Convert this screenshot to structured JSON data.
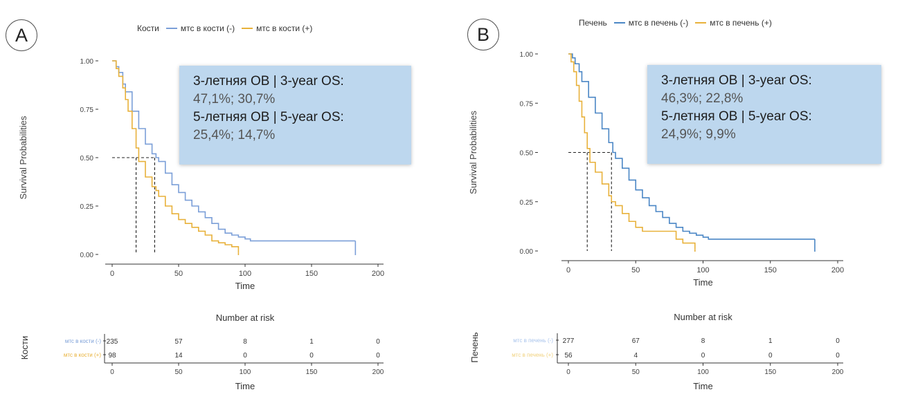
{
  "chart_data": [
    {
      "type": "line",
      "panel_label": "A",
      "legend_title": "Кости",
      "series": [
        {
          "name": "мтс в кости (-)",
          "color": "#7b9fd8",
          "x": [
            0,
            3,
            5,
            8,
            10,
            15,
            20,
            25,
            30,
            33,
            35,
            40,
            45,
            50,
            55,
            60,
            65,
            70,
            75,
            80,
            85,
            90,
            95,
            100,
            104,
            110,
            183
          ],
          "y": [
            1.0,
            0.97,
            0.94,
            0.88,
            0.84,
            0.74,
            0.65,
            0.57,
            0.52,
            0.5,
            0.48,
            0.42,
            0.36,
            0.32,
            0.28,
            0.25,
            0.22,
            0.19,
            0.16,
            0.13,
            0.11,
            0.1,
            0.09,
            0.08,
            0.07,
            0.07,
            0.07
          ]
        },
        {
          "name": "мтс в кости (+)",
          "color": "#e8b13a",
          "x": [
            0,
            3,
            5,
            8,
            10,
            12,
            15,
            18,
            20,
            25,
            30,
            33,
            35,
            40,
            45,
            50,
            55,
            60,
            65,
            70,
            75,
            80,
            85,
            90,
            95
          ],
          "y": [
            1.0,
            0.96,
            0.92,
            0.86,
            0.8,
            0.74,
            0.65,
            0.55,
            0.48,
            0.4,
            0.35,
            0.33,
            0.3,
            0.25,
            0.21,
            0.18,
            0.16,
            0.14,
            0.12,
            0.1,
            0.07,
            0.06,
            0.05,
            0.04,
            0.01
          ]
        }
      ],
      "median_lines": [
        18,
        32
      ],
      "xlabel": "Time",
      "ylabel": "Survival Probabilities",
      "xlim": [
        0,
        200
      ],
      "ylim": [
        0,
        1
      ],
      "xticks": [
        "0",
        "50",
        "100",
        "150",
        "200"
      ],
      "yticks": [
        "0.00",
        "0.25",
        "0.50",
        "0.75",
        "1.00"
      ],
      "annotation": {
        "line1": "3-летняя ОВ | 3-year OS:",
        "line2": "47,1%;  30,7%",
        "line3": "5-летняя ОВ | 5-year OS:",
        "line4": "25,4%;  14,7%"
      },
      "risk_table": {
        "title": "Number at risk",
        "group_label": "Кости",
        "xlabel": "Time",
        "rows": [
          {
            "label": "мтс в кости (-)",
            "color": "#7b9fd8",
            "values": [
              "235",
              "57",
              "8",
              "1",
              "0"
            ]
          },
          {
            "label": "мтс в кости (+)",
            "color": "#e8b13a",
            "values": [
              "98",
              "14",
              "0",
              "0",
              "0"
            ]
          }
        ]
      }
    },
    {
      "type": "line",
      "panel_label": "B",
      "legend_title": "Печень",
      "series": [
        {
          "name": "мтс в печень (-)",
          "color": "#4a86c5",
          "x": [
            0,
            3,
            5,
            8,
            10,
            15,
            20,
            25,
            30,
            33,
            35,
            40,
            45,
            50,
            55,
            60,
            65,
            70,
            75,
            80,
            85,
            90,
            95,
            100,
            104,
            110,
            183
          ],
          "y": [
            1.0,
            0.98,
            0.95,
            0.91,
            0.86,
            0.78,
            0.7,
            0.62,
            0.55,
            0.5,
            0.47,
            0.42,
            0.36,
            0.31,
            0.27,
            0.23,
            0.2,
            0.17,
            0.14,
            0.12,
            0.1,
            0.09,
            0.08,
            0.07,
            0.06,
            0.06,
            0.06
          ]
        },
        {
          "name": "мтс в печень (+)",
          "color": "#e8b13a",
          "x": [
            0,
            2,
            4,
            6,
            8,
            10,
            12,
            14,
            16,
            20,
            25,
            30,
            32,
            35,
            40,
            45,
            50,
            55,
            60,
            65,
            70,
            75,
            80,
            85,
            90,
            94
          ],
          "y": [
            1.0,
            0.96,
            0.91,
            0.84,
            0.76,
            0.68,
            0.6,
            0.52,
            0.45,
            0.4,
            0.34,
            0.28,
            0.25,
            0.23,
            0.19,
            0.15,
            0.12,
            0.1,
            0.1,
            0.1,
            0.1,
            0.1,
            0.06,
            0.04,
            0.04,
            0.01
          ]
        }
      ],
      "median_lines": [
        14,
        32
      ],
      "xlabel": "Time",
      "ylabel": "Survival Probabilities",
      "xlim": [
        0,
        200
      ],
      "ylim": [
        0,
        1
      ],
      "xticks": [
        "0",
        "50",
        "100",
        "150",
        "200"
      ],
      "yticks": [
        "0.00",
        "0.25",
        "0.50",
        "0.75",
        "1.00"
      ],
      "annotation": {
        "line1": "3-летняя ОВ | 3-year OS:",
        "line2": "46,3%;  22,8%",
        "line3": "5-летняя ОВ | 5-year OS:",
        "line4": "24,9%;  9,9%"
      },
      "risk_table": {
        "title": "Number at risk",
        "group_label": "Печень",
        "xlabel": "Time",
        "rows": [
          {
            "label": "мтс в печень (-)",
            "color": "#a9c4ec",
            "values": [
              "277",
              "67",
              "8",
              "1",
              "0"
            ]
          },
          {
            "label": "мтс в печень (+)",
            "color": "#f1d27e",
            "values": [
              "56",
              "4",
              "0",
              "0",
              "0"
            ]
          }
        ]
      }
    }
  ]
}
